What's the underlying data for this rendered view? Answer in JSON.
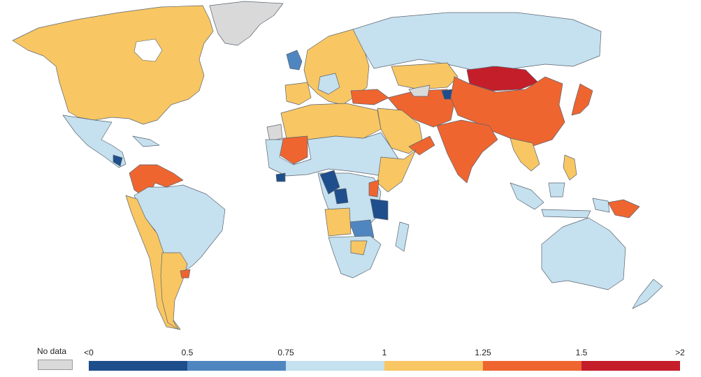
{
  "colors": {
    "no_data": "#d9d9d9",
    "below_0_5": "#1f4e8c",
    "0_5_to_0_75": "#4f86c0",
    "0_75_to_1": "#c5e0ee",
    "1_to_1_25": "#f8c663",
    "1_25_to_1_5": "#ef6530",
    "above_1_5": "#c41e2a",
    "border": "#5a6470"
  },
  "legend": {
    "no_data_label": "No data",
    "ticks": [
      "<0",
      "0.5",
      "0.75",
      "1",
      "1.25",
      "1.5",
      ">2"
    ],
    "bins": [
      {
        "from": "<0",
        "to": "0.5",
        "color": "#1f4e8c"
      },
      {
        "from": "0.5",
        "to": "0.75",
        "color": "#4f86c0"
      },
      {
        "from": "0.75",
        "to": "1",
        "color": "#c5e0ee"
      },
      {
        "from": "1",
        "to": "1.25",
        "color": "#f8c663"
      },
      {
        "from": "1.25",
        "to": "1.5",
        "color": "#ef6530"
      },
      {
        "from": "1.5",
        "to": ">2",
        "color": "#c41e2a"
      }
    ]
  }
}
